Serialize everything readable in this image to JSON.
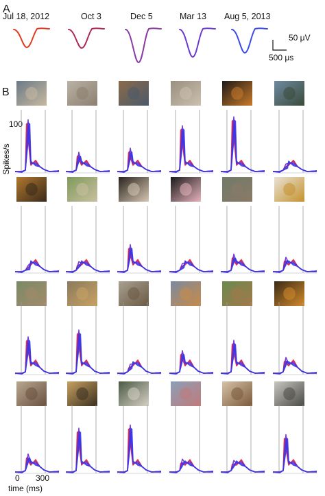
{
  "panel_a": {
    "letter": "A",
    "dates": [
      "Jul 18, 2012",
      "Oct 3",
      "Dec 5",
      "Mar 13",
      "Aug 5, 2013"
    ],
    "waveform_colors": [
      "#e03a1e",
      "#b0285a",
      "#8a3aa0",
      "#6a3ad0",
      "#3a4ae8"
    ],
    "scale_amplitude": "50 μV",
    "scale_time": "500 μs"
  },
  "panel_b": {
    "letter": "B",
    "y_tick": "100",
    "y_label": "Spikes/s",
    "x_ticks": [
      "0",
      "300"
    ],
    "x_label": "time (ms)",
    "colors": {
      "early": "#e8242a",
      "late": "#3a36e8"
    },
    "thumbnails": [
      [
        "monkey-photo-1",
        "monkey-photo-2",
        "monkey-photo-3",
        "monkey-photo-4",
        "monkey-photo-5",
        "monkey-photo-6"
      ],
      [
        "monkey-photo-7",
        "monkey-photo-8",
        "monkey-photo-9",
        "monkey-photo-10",
        "monkey-photo-11",
        "monkey-photo-12"
      ],
      [
        "monkey-photo-13",
        "monkey-photo-14",
        "monkey-photo-15",
        "monkey-photo-16",
        "monkey-photo-17",
        "monkey-photo-18"
      ],
      [
        "monkey-photo-19",
        "monkey-photo-20",
        "monkey-photo-21",
        "monkey-photo-22",
        "monkey-photo-23",
        "monkey-photo-24"
      ]
    ],
    "peak_rates": [
      [
        90,
        35,
        42,
        80,
        95,
        15
      ],
      [
        12,
        18,
        45,
        15,
        30,
        25
      ],
      [
        55,
        65,
        15,
        35,
        50,
        25
      ],
      [
        30,
        70,
        75,
        22,
        20,
        60
      ]
    ]
  }
}
